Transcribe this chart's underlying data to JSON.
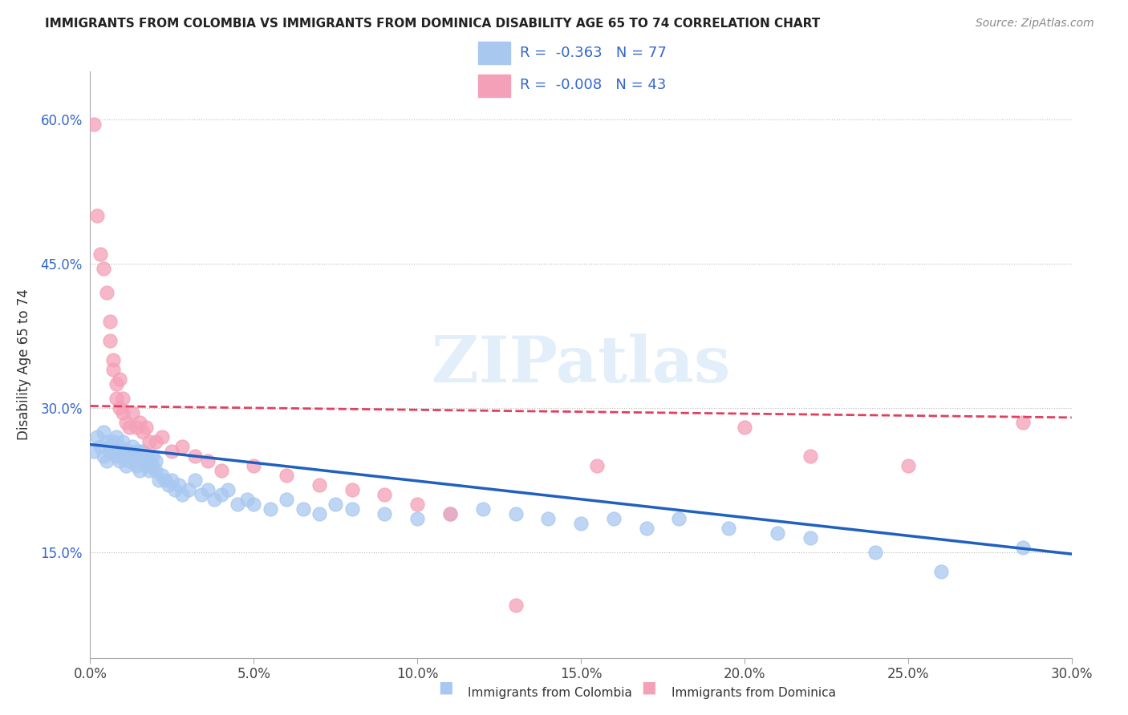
{
  "title": "IMMIGRANTS FROM COLOMBIA VS IMMIGRANTS FROM DOMINICA DISABILITY AGE 65 TO 74 CORRELATION CHART",
  "source": "Source: ZipAtlas.com",
  "ylabel": "Disability Age 65 to 74",
  "x_min": 0.0,
  "x_max": 0.3,
  "y_min": 0.04,
  "y_max": 0.65,
  "x_ticks": [
    0.0,
    0.05,
    0.1,
    0.15,
    0.2,
    0.25,
    0.3
  ],
  "x_tick_labels": [
    "0.0%",
    "5.0%",
    "10.0%",
    "15.0%",
    "20.0%",
    "25.0%",
    "30.0%"
  ],
  "y_ticks": [
    0.15,
    0.3,
    0.45,
    0.6
  ],
  "y_tick_labels": [
    "15.0%",
    "30.0%",
    "45.0%",
    "60.0%"
  ],
  "colombia_color": "#a8c8f0",
  "dominica_color": "#f4a0b8",
  "colombia_line_color": "#2060c0",
  "dominica_line_color": "#e04060",
  "watermark": "ZIPatlas",
  "legend_r_colombia": "-0.363",
  "legend_n_colombia": "77",
  "legend_r_dominica": "-0.008",
  "legend_n_dominica": "43",
  "colombia_x": [
    0.001,
    0.002,
    0.003,
    0.004,
    0.004,
    0.005,
    0.005,
    0.006,
    0.006,
    0.007,
    0.007,
    0.008,
    0.008,
    0.009,
    0.009,
    0.01,
    0.01,
    0.011,
    0.011,
    0.012,
    0.012,
    0.013,
    0.013,
    0.014,
    0.014,
    0.015,
    0.015,
    0.016,
    0.016,
    0.017,
    0.017,
    0.018,
    0.018,
    0.019,
    0.019,
    0.02,
    0.02,
    0.021,
    0.022,
    0.023,
    0.024,
    0.025,
    0.026,
    0.027,
    0.028,
    0.03,
    0.032,
    0.034,
    0.036,
    0.038,
    0.04,
    0.042,
    0.045,
    0.048,
    0.05,
    0.055,
    0.06,
    0.065,
    0.07,
    0.075,
    0.08,
    0.09,
    0.1,
    0.11,
    0.12,
    0.13,
    0.14,
    0.15,
    0.16,
    0.17,
    0.18,
    0.195,
    0.21,
    0.22,
    0.24,
    0.26,
    0.285
  ],
  "colombia_y": [
    0.255,
    0.27,
    0.26,
    0.275,
    0.25,
    0.265,
    0.245,
    0.26,
    0.255,
    0.265,
    0.255,
    0.27,
    0.25,
    0.26,
    0.245,
    0.265,
    0.25,
    0.255,
    0.24,
    0.255,
    0.245,
    0.26,
    0.25,
    0.255,
    0.24,
    0.255,
    0.235,
    0.245,
    0.255,
    0.24,
    0.25,
    0.245,
    0.235,
    0.25,
    0.24,
    0.245,
    0.235,
    0.225,
    0.23,
    0.225,
    0.22,
    0.225,
    0.215,
    0.22,
    0.21,
    0.215,
    0.225,
    0.21,
    0.215,
    0.205,
    0.21,
    0.215,
    0.2,
    0.205,
    0.2,
    0.195,
    0.205,
    0.195,
    0.19,
    0.2,
    0.195,
    0.19,
    0.185,
    0.19,
    0.195,
    0.19,
    0.185,
    0.18,
    0.185,
    0.175,
    0.185,
    0.175,
    0.17,
    0.165,
    0.15,
    0.13,
    0.155
  ],
  "dominica_x": [
    0.001,
    0.002,
    0.003,
    0.004,
    0.005,
    0.006,
    0.006,
    0.007,
    0.007,
    0.008,
    0.008,
    0.009,
    0.009,
    0.01,
    0.01,
    0.011,
    0.012,
    0.013,
    0.014,
    0.015,
    0.016,
    0.017,
    0.018,
    0.02,
    0.022,
    0.025,
    0.028,
    0.032,
    0.036,
    0.04,
    0.05,
    0.06,
    0.07,
    0.08,
    0.09,
    0.1,
    0.11,
    0.13,
    0.155,
    0.2,
    0.22,
    0.25,
    0.285
  ],
  "dominica_y": [
    0.595,
    0.5,
    0.46,
    0.445,
    0.42,
    0.39,
    0.37,
    0.35,
    0.34,
    0.325,
    0.31,
    0.3,
    0.33,
    0.31,
    0.295,
    0.285,
    0.28,
    0.295,
    0.28,
    0.285,
    0.275,
    0.28,
    0.265,
    0.265,
    0.27,
    0.255,
    0.26,
    0.25,
    0.245,
    0.235,
    0.24,
    0.23,
    0.22,
    0.215,
    0.21,
    0.2,
    0.19,
    0.095,
    0.24,
    0.28,
    0.25,
    0.24,
    0.285
  ]
}
